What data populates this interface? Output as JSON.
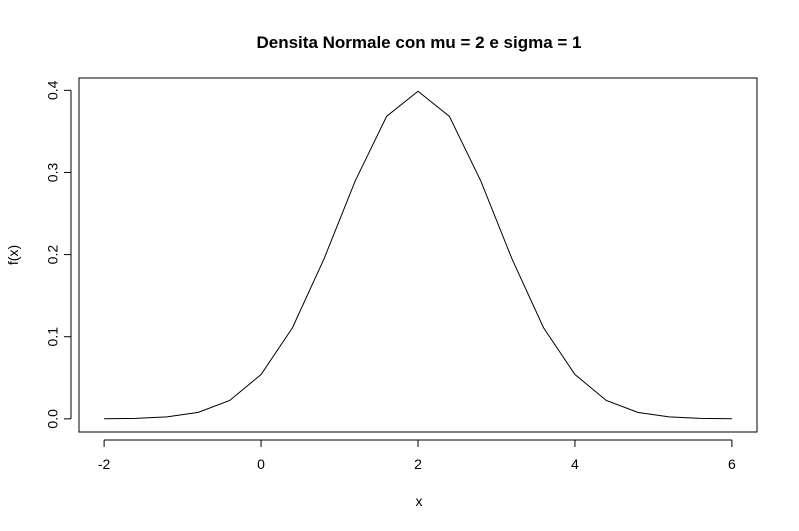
{
  "chart_data": {
    "type": "line",
    "title": "Densita Normale con mu = 2 e sigma = 1",
    "xlabel": "x",
    "ylabel": "f(x)",
    "xlim": [
      -2.32,
      6.32
    ],
    "ylim": [
      -0.016,
      0.415
    ],
    "x_ticks": [
      -2,
      0,
      2,
      4,
      6
    ],
    "x_tick_labels": [
      "-2",
      "0",
      "2",
      "4",
      "6"
    ],
    "y_ticks": [
      0.0,
      0.1,
      0.2,
      0.3,
      0.4
    ],
    "y_tick_labels": [
      "0.0",
      "0.1",
      "0.2",
      "0.3",
      "0.4"
    ],
    "grid": false,
    "legend": "none",
    "series": [
      {
        "color": "#000000",
        "x": [
          -2.0,
          -1.6,
          -1.2,
          -0.8,
          -0.4,
          0.0,
          0.4,
          0.8,
          1.2,
          1.6,
          2.0,
          2.4,
          2.8,
          3.2,
          3.6,
          4.0,
          4.4,
          4.8,
          5.2,
          5.6,
          6.0
        ],
        "y": [
          0.0001,
          0.0006,
          0.0024,
          0.0079,
          0.0224,
          0.054,
          0.1109,
          0.1942,
          0.2897,
          0.3683,
          0.3989,
          0.3683,
          0.2897,
          0.1942,
          0.1109,
          0.054,
          0.0224,
          0.0079,
          0.0024,
          0.0006,
          0.0001
        ]
      }
    ]
  }
}
